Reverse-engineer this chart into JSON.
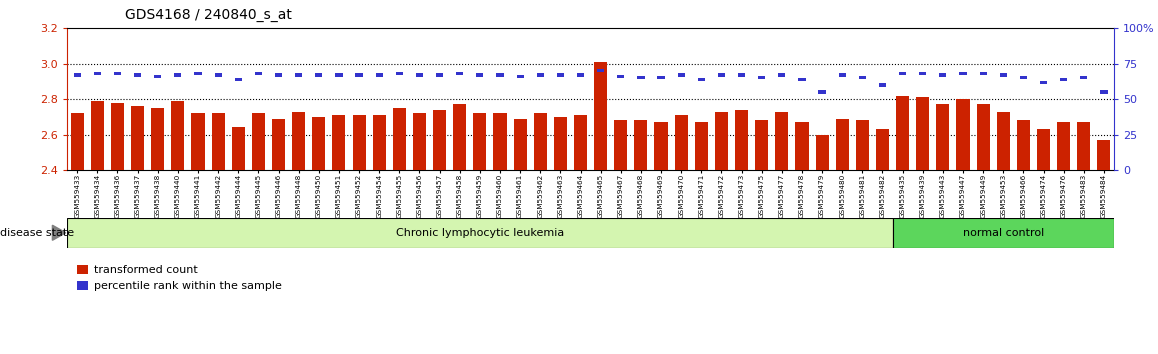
{
  "title": "GDS4168 / 240840_s_at",
  "samples": [
    "GSM559433",
    "GSM559434",
    "GSM559436",
    "GSM559437",
    "GSM559438",
    "GSM559440",
    "GSM559441",
    "GSM559442",
    "GSM559444",
    "GSM559445",
    "GSM559446",
    "GSM559448",
    "GSM559450",
    "GSM559451",
    "GSM559452",
    "GSM559454",
    "GSM559455",
    "GSM559456",
    "GSM559457",
    "GSM559458",
    "GSM559459",
    "GSM559460",
    "GSM559461",
    "GSM559462",
    "GSM559463",
    "GSM559464",
    "GSM559465",
    "GSM559467",
    "GSM559468",
    "GSM559469",
    "GSM559470",
    "GSM559471",
    "GSM559472",
    "GSM559473",
    "GSM559475",
    "GSM559477",
    "GSM559478",
    "GSM559479",
    "GSM559480",
    "GSM559481",
    "GSM559482",
    "GSM559435",
    "GSM559439",
    "GSM559443",
    "GSM559447",
    "GSM559449",
    "GSM559453",
    "GSM559466",
    "GSM559474",
    "GSM559476",
    "GSM559483",
    "GSM559484"
  ],
  "red_values": [
    2.72,
    2.79,
    2.78,
    2.76,
    2.75,
    2.79,
    2.72,
    2.72,
    2.64,
    2.72,
    2.69,
    2.73,
    2.7,
    2.71,
    2.71,
    2.71,
    2.75,
    2.72,
    2.74,
    2.77,
    2.72,
    2.72,
    2.69,
    2.72,
    2.7,
    2.71,
    3.01,
    2.68,
    2.68,
    2.67,
    2.71,
    2.67,
    2.73,
    2.74,
    2.68,
    2.73,
    2.67,
    2.6,
    2.69,
    2.68,
    2.63,
    2.82,
    2.81,
    2.77,
    2.8,
    2.77,
    2.73,
    2.68,
    2.63,
    2.67,
    2.67,
    2.57
  ],
  "blue_values": [
    67,
    68,
    68,
    67,
    66,
    67,
    68,
    67,
    64,
    68,
    67,
    67,
    67,
    67,
    67,
    67,
    68,
    67,
    67,
    68,
    67,
    67,
    66,
    67,
    67,
    67,
    70,
    66,
    65,
    65,
    67,
    64,
    67,
    67,
    65,
    67,
    64,
    55,
    67,
    65,
    60,
    68,
    68,
    67,
    68,
    68,
    67,
    65,
    62,
    64,
    65,
    55
  ],
  "group_labels": [
    "Chronic lymphocytic leukemia",
    "normal control"
  ],
  "group_sizes": [
    41,
    11
  ],
  "group_colors": [
    "#d4f5b0",
    "#5cd65c"
  ],
  "bar_color_red": "#cc2200",
  "bar_color_blue": "#3333cc",
  "ylim_left": [
    2.4,
    3.2
  ],
  "ylim_right": [
    0,
    100
  ],
  "yticks_left": [
    2.4,
    2.6,
    2.8,
    3.0,
    3.2
  ],
  "yticks_right": [
    0,
    25,
    50,
    75,
    100
  ],
  "grid_values": [
    2.6,
    2.8,
    3.0
  ],
  "background_color": "#ffffff",
  "axis_color_left": "#cc2200",
  "axis_color_right": "#3333cc",
  "legend_items": [
    "transformed count",
    "percentile rank within the sample"
  ],
  "disease_state_label": "disease state"
}
